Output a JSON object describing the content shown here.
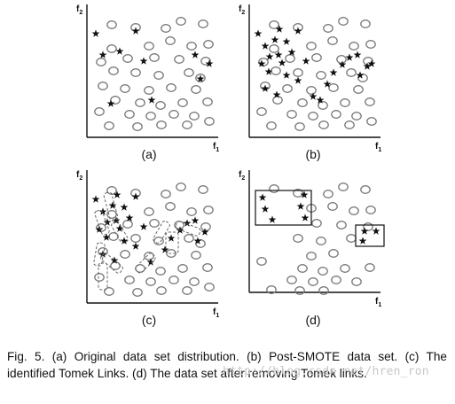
{
  "panels": [
    {
      "id": "a",
      "label": "(a)"
    },
    {
      "id": "b",
      "label": "(b)"
    },
    {
      "id": "c",
      "label": "(c)"
    },
    {
      "id": "d",
      "label": "(d)"
    }
  ],
  "axes": {
    "x_label": "f1",
    "y_label": "f2"
  },
  "caption": "Fig. 5. (a) Original data set distribution. (b) Post-SMOTE data set. (c) The identified Tomek Links. (d) The data set after removing Tomek links.",
  "watermark": "http://blog.csdn.net/hren_ron",
  "colors": {
    "ink": "#111111",
    "circle": "#777777",
    "dashed": "#666666",
    "watermark": "#c8c8c8"
  }
}
